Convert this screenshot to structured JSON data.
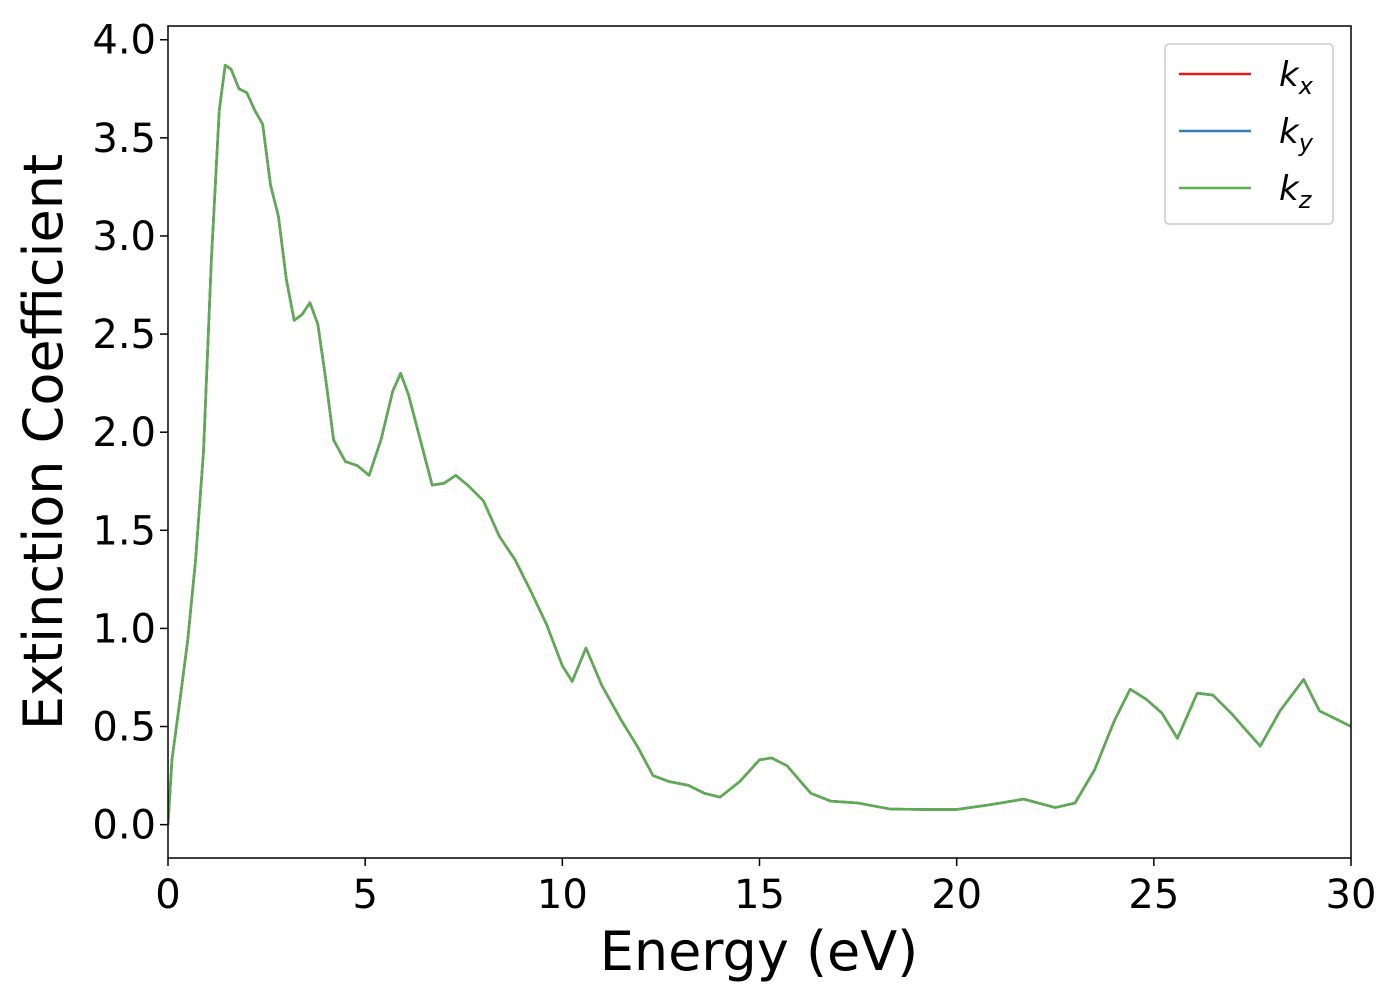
{
  "chart_data": {
    "type": "line",
    "x_label": "Energy (eV)",
    "y_label": "Extinction Coefficient",
    "x": [
      0,
      0.1,
      0.3,
      0.5,
      0.7,
      0.9,
      1.1,
      1.3,
      1.45,
      1.6,
      1.8,
      2.0,
      2.2,
      2.4,
      2.6,
      2.8,
      3.0,
      3.2,
      3.4,
      3.6,
      3.8,
      4.0,
      4.2,
      4.5,
      4.8,
      5.1,
      5.4,
      5.7,
      5.9,
      6.1,
      6.4,
      6.7,
      7.0,
      7.3,
      7.6,
      8.0,
      8.4,
      8.8,
      9.2,
      9.6,
      10.0,
      10.25,
      10.6,
      11.0,
      11.5,
      11.9,
      12.3,
      12.7,
      13.2,
      13.6,
      14.0,
      14.5,
      15.0,
      15.3,
      15.7,
      16.0,
      16.3,
      16.8,
      17.5,
      18.3,
      19.2,
      20.0,
      20.8,
      21.7,
      22.5,
      23.0,
      23.5,
      24.0,
      24.4,
      24.8,
      25.2,
      25.6,
      26.1,
      26.5,
      27.0,
      27.3,
      27.7,
      28.2,
      28.8,
      29.2,
      29.6,
      30.0
    ],
    "series": [
      {
        "name": "kx",
        "color": "#e41a1c",
        "values": [
          0,
          0.33,
          0.63,
          0.94,
          1.35,
          1.9,
          2.88,
          3.64,
          3.87,
          3.85,
          3.75,
          3.73,
          3.64,
          3.57,
          3.26,
          3.1,
          2.78,
          2.57,
          2.6,
          2.66,
          2.55,
          2.27,
          1.96,
          1.85,
          1.83,
          1.78,
          1.96,
          2.21,
          2.3,
          2.19,
          1.96,
          1.73,
          1.74,
          1.78,
          1.73,
          1.65,
          1.47,
          1.35,
          1.19,
          1.02,
          0.81,
          0.73,
          0.9,
          0.71,
          0.53,
          0.4,
          0.25,
          0.22,
          0.2,
          0.16,
          0.14,
          0.22,
          0.33,
          0.34,
          0.3,
          0.23,
          0.16,
          0.12,
          0.11,
          0.08,
          0.077,
          0.077,
          0.1,
          0.13,
          0.087,
          0.11,
          0.28,
          0.53,
          0.69,
          0.64,
          0.57,
          0.44,
          0.67,
          0.66,
          0.56,
          0.49,
          0.4,
          0.58,
          0.74,
          0.58,
          0.54,
          0.5
        ]
      },
      {
        "name": "ky",
        "color": "#377eb8",
        "values": [
          0,
          0.33,
          0.63,
          0.94,
          1.35,
          1.9,
          2.88,
          3.64,
          3.87,
          3.85,
          3.75,
          3.73,
          3.64,
          3.57,
          3.26,
          3.1,
          2.78,
          2.57,
          2.6,
          2.66,
          2.55,
          2.27,
          1.96,
          1.85,
          1.83,
          1.78,
          1.96,
          2.21,
          2.3,
          2.19,
          1.96,
          1.73,
          1.74,
          1.78,
          1.73,
          1.65,
          1.47,
          1.35,
          1.19,
          1.02,
          0.81,
          0.73,
          0.9,
          0.71,
          0.53,
          0.4,
          0.25,
          0.22,
          0.2,
          0.16,
          0.14,
          0.22,
          0.33,
          0.34,
          0.3,
          0.23,
          0.16,
          0.12,
          0.11,
          0.08,
          0.077,
          0.077,
          0.1,
          0.13,
          0.087,
          0.11,
          0.28,
          0.53,
          0.69,
          0.64,
          0.57,
          0.44,
          0.67,
          0.66,
          0.56,
          0.49,
          0.4,
          0.58,
          0.74,
          0.58,
          0.54,
          0.5
        ]
      },
      {
        "name": "kz",
        "color": "#5cad4f",
        "values": [
          0,
          0.33,
          0.63,
          0.94,
          1.35,
          1.9,
          2.88,
          3.64,
          3.87,
          3.85,
          3.75,
          3.73,
          3.64,
          3.57,
          3.26,
          3.1,
          2.78,
          2.57,
          2.6,
          2.66,
          2.55,
          2.27,
          1.96,
          1.85,
          1.83,
          1.78,
          1.96,
          2.21,
          2.3,
          2.19,
          1.96,
          1.73,
          1.74,
          1.78,
          1.73,
          1.65,
          1.47,
          1.35,
          1.19,
          1.02,
          0.81,
          0.73,
          0.9,
          0.71,
          0.53,
          0.4,
          0.25,
          0.22,
          0.2,
          0.16,
          0.14,
          0.22,
          0.33,
          0.34,
          0.3,
          0.23,
          0.16,
          0.12,
          0.11,
          0.08,
          0.077,
          0.077,
          0.1,
          0.13,
          0.087,
          0.11,
          0.28,
          0.53,
          0.69,
          0.64,
          0.57,
          0.44,
          0.67,
          0.66,
          0.56,
          0.49,
          0.4,
          0.58,
          0.74,
          0.58,
          0.54,
          0.5
        ]
      }
    ],
    "xlim": [
      0,
      30
    ],
    "xticks": [
      0,
      5,
      10,
      15,
      20,
      25,
      30
    ],
    "ylim": [
      -0.17,
      4.07
    ],
    "yticks": [
      {
        "value": 0,
        "label": "0.0"
      },
      {
        "value": 0.5,
        "label": "0.5"
      },
      {
        "value": 1,
        "label": "1.0"
      },
      {
        "value": 1.5,
        "label": "1.5"
      },
      {
        "value": 2,
        "label": "2.0"
      },
      {
        "value": 2.5,
        "label": "2.5"
      },
      {
        "value": 3,
        "label": "3.0"
      },
      {
        "value": 3.5,
        "label": "3.5"
      },
      {
        "value": 4,
        "label": "4.0"
      }
    ],
    "grid": false,
    "legend": "upper right"
  }
}
